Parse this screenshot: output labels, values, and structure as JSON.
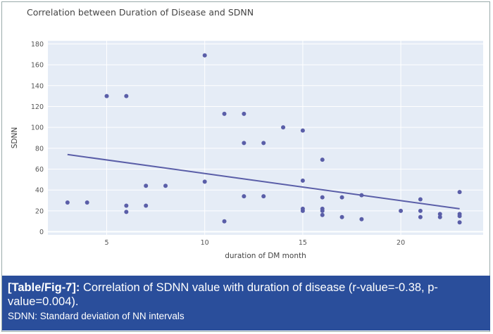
{
  "chart_data": {
    "type": "scatter",
    "title": "Correlation between Duration of Disease and SDNN",
    "xlabel": "duration of DM month",
    "ylabel": "SDNN",
    "xlim": [
      2,
      24.2
    ],
    "ylim": [
      -3,
      183
    ],
    "xticks": [
      5,
      10,
      15,
      20
    ],
    "yticks": [
      0,
      20,
      40,
      60,
      80,
      100,
      120,
      140,
      160,
      180
    ],
    "grid": true,
    "marker_color": "#5a5ea8",
    "background": "#e5ecf6",
    "points": [
      [
        3,
        28
      ],
      [
        4,
        28
      ],
      [
        5,
        130
      ],
      [
        6,
        130
      ],
      [
        6,
        25
      ],
      [
        6,
        19
      ],
      [
        7,
        44
      ],
      [
        7,
        25
      ],
      [
        8,
        44
      ],
      [
        10,
        169
      ],
      [
        10,
        48
      ],
      [
        11,
        113
      ],
      [
        11,
        10
      ],
      [
        12,
        113
      ],
      [
        12,
        85
      ],
      [
        12,
        34
      ],
      [
        13,
        85
      ],
      [
        13,
        34
      ],
      [
        14,
        100
      ],
      [
        15,
        97
      ],
      [
        15,
        49
      ],
      [
        15,
        22
      ],
      [
        15,
        20
      ],
      [
        16,
        69
      ],
      [
        16,
        33
      ],
      [
        16,
        22
      ],
      [
        16,
        20
      ],
      [
        16,
        16
      ],
      [
        17,
        33
      ],
      [
        17,
        14
      ],
      [
        18,
        35
      ],
      [
        18,
        12
      ],
      [
        20,
        20
      ],
      [
        21,
        31
      ],
      [
        21,
        20
      ],
      [
        21,
        14
      ],
      [
        22,
        17
      ],
      [
        22,
        14
      ],
      [
        23,
        38
      ],
      [
        23,
        17
      ],
      [
        23,
        15
      ],
      [
        23,
        9
      ]
    ],
    "trendline": [
      [
        3,
        74
      ],
      [
        23,
        22
      ]
    ]
  },
  "caption": {
    "label": "[Table/Fig-7]:",
    "text": " Correlation of SDNN value with duration of disease (r-value=-0.38, p-value=0.004).",
    "note": "SDNN: Standard deviation of NN intervals"
  }
}
